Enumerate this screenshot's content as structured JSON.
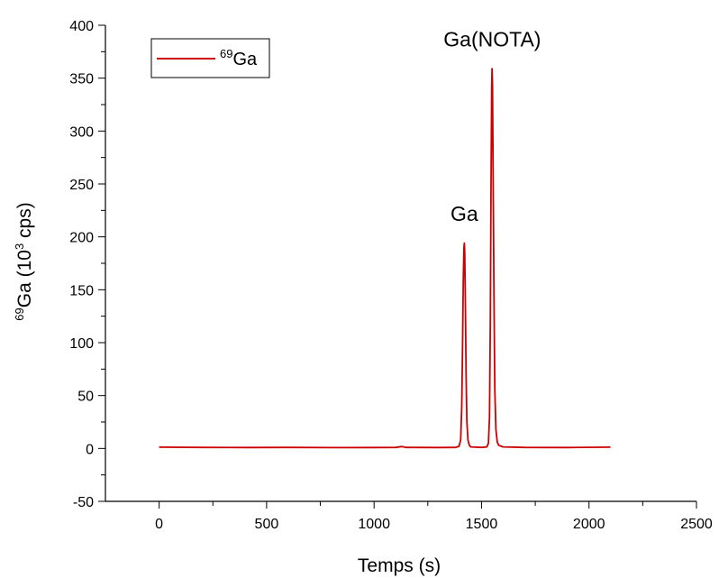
{
  "chart_data": {
    "type": "line",
    "title": "",
    "xlabel": "Temps (s)",
    "ylabel_isotope_mass": "69",
    "ylabel_element": "Ga (10",
    "ylabel_exponent": "3",
    "ylabel_unit": " cps)",
    "xlim": [
      -250,
      2500
    ],
    "ylim": [
      -50,
      400
    ],
    "x_ticks": [
      0,
      500,
      1000,
      1500,
      2000,
      2500
    ],
    "y_ticks": [
      -50,
      0,
      50,
      100,
      150,
      200,
      250,
      300,
      350,
      400
    ],
    "grid": false,
    "legend_position": "top-left",
    "series": [
      {
        "name_mass": "69",
        "name_element": "Ga",
        "color": "#cc0000",
        "points": [
          [
            0,
            1.2
          ],
          [
            200,
            1.0
          ],
          [
            400,
            0.9
          ],
          [
            600,
            1.0
          ],
          [
            800,
            0.8
          ],
          [
            1000,
            0.9
          ],
          [
            1100,
            1.0
          ],
          [
            1130,
            1.8
          ],
          [
            1150,
            1.0
          ],
          [
            1300,
            0.9
          ],
          [
            1380,
            1.0
          ],
          [
            1395,
            2
          ],
          [
            1403,
            8
          ],
          [
            1408,
            40
          ],
          [
            1412,
            105
          ],
          [
            1415,
            160
          ],
          [
            1418,
            190
          ],
          [
            1420,
            194
          ],
          [
            1422,
            185
          ],
          [
            1425,
            130
          ],
          [
            1428,
            70
          ],
          [
            1432,
            25
          ],
          [
            1437,
            8
          ],
          [
            1443,
            3
          ],
          [
            1450,
            1.5
          ],
          [
            1500,
            1.0
          ],
          [
            1525,
            1.5
          ],
          [
            1532,
            5
          ],
          [
            1537,
            30
          ],
          [
            1541,
            120
          ],
          [
            1544,
            250
          ],
          [
            1547,
            340
          ],
          [
            1549,
            359
          ],
          [
            1551,
            345
          ],
          [
            1554,
            260
          ],
          [
            1558,
            140
          ],
          [
            1562,
            55
          ],
          [
            1567,
            18
          ],
          [
            1573,
            6
          ],
          [
            1580,
            3
          ],
          [
            1600,
            1.5
          ],
          [
            1700,
            1.0
          ],
          [
            1900,
            0.9
          ],
          [
            2100,
            1.2
          ]
        ]
      }
    ],
    "annotations": [
      {
        "text": "Ga",
        "x": 1420,
        "y": 215
      },
      {
        "text": "Ga(NOTA)",
        "x": 1550,
        "y": 380
      }
    ]
  }
}
